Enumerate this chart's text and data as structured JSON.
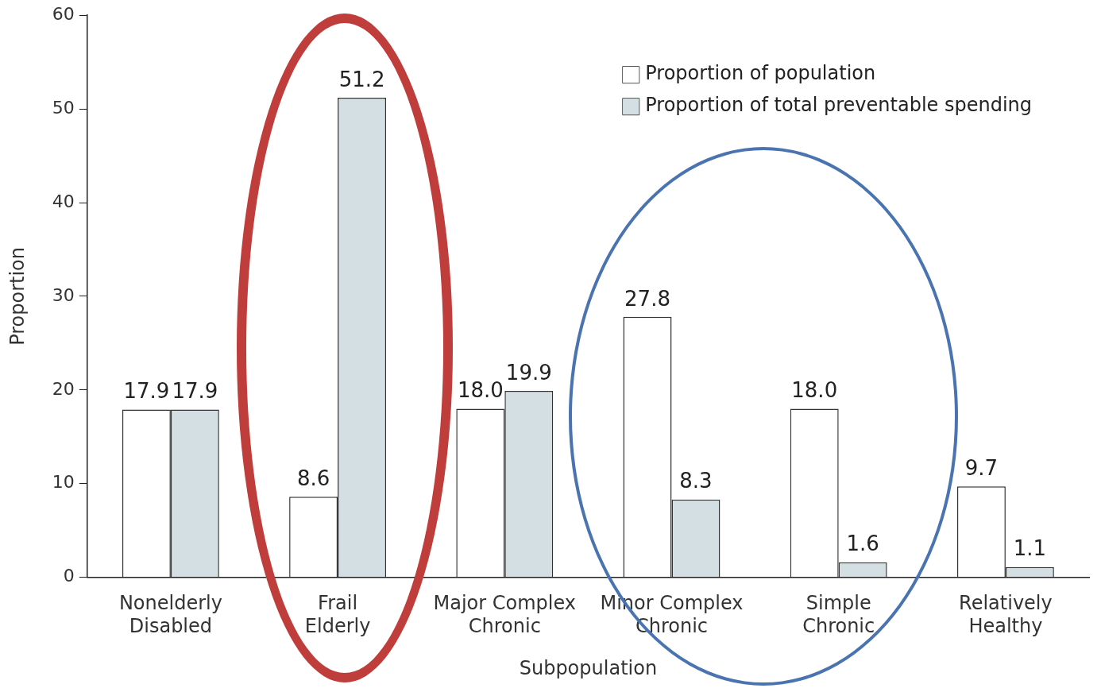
{
  "chart_data": {
    "type": "bar",
    "xlabel": "Subpopulation",
    "ylabel": "Proportion",
    "categories": [
      "Nonelderly Disabled",
      "Frail Elderly",
      "Major Complex Chronic",
      "Minor Complex Chronic",
      "Simple Chronic",
      "Relatively Healthy"
    ],
    "series": [
      {
        "name": "Proportion of population",
        "color": "#ffffff",
        "values": [
          17.9,
          8.6,
          18.0,
          27.8,
          18.0,
          9.7
        ],
        "value_labels": [
          "17.9",
          "8.6",
          "18.0",
          "27.8",
          "18.0",
          "9.7"
        ]
      },
      {
        "name": "Proportion of total preventable spending",
        "color": "#d3dfe3",
        "values": [
          17.9,
          51.2,
          19.9,
          8.3,
          1.6,
          1.1
        ],
        "value_labels": [
          "17.9",
          "51.2",
          "19.9",
          "8.3",
          "1.6",
          "1.1"
        ]
      }
    ],
    "ylim": [
      0,
      60
    ],
    "yticks": [
      0,
      10,
      20,
      30,
      40,
      50,
      60
    ],
    "grid": false,
    "legend": "top right"
  }
}
